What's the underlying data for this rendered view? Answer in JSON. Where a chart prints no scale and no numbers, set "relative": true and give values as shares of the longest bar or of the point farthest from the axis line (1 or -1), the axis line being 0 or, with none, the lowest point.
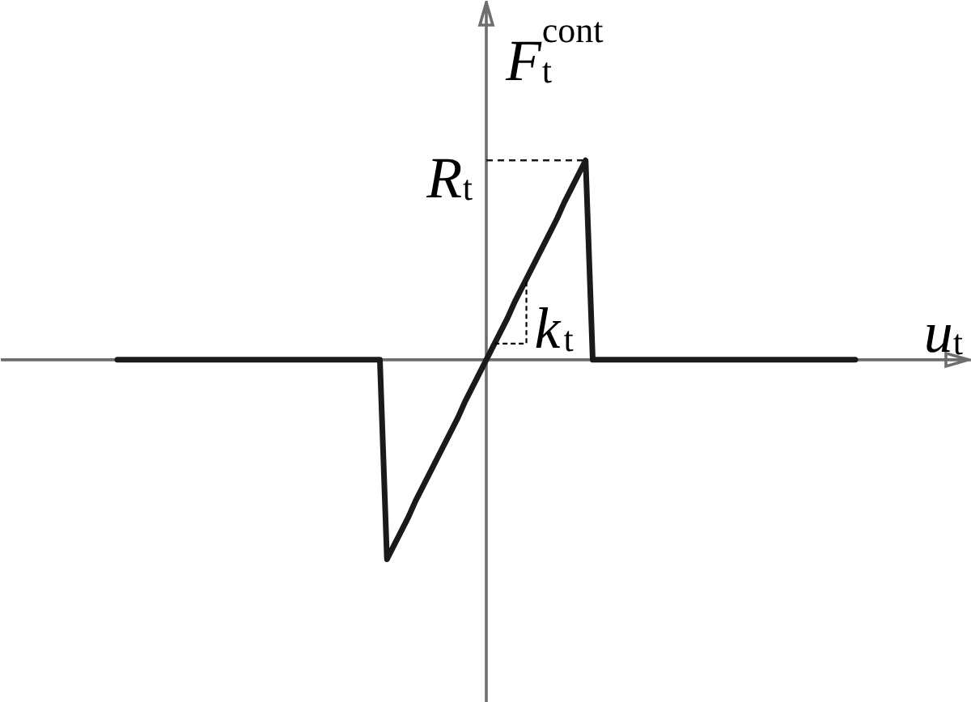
{
  "chart_data": {
    "type": "line",
    "xlabel": "u$_{t}$",
    "ylabel": "F$_{t}$$^{cont}$",
    "relative": true,
    "categories": [
      null,
      null,
      null,
      null,
      null,
      null,
      null,
      null,
      null,
      null,
      null,
      null,
      null,
      null,
      null,
      null,
      null,
      null,
      null,
      null,
      null,
      null,
      null,
      null,
      null,
      null,
      null,
      null,
      null,
      null,
      null,
      null,
      null,
      null,
      null,
      null,
      null,
      null,
      null,
      null,
      null,
      null,
      null,
      null,
      null,
      null,
      null,
      null,
      null,
      null,
      null,
      null,
      null,
      null,
      null,
      null,
      null,
      null,
      null,
      null,
      null,
      null,
      null,
      null,
      null,
      null,
      null,
      null,
      null,
      null,
      null,
      null,
      null,
      null,
      null,
      null,
      null,
      null,
      null,
      null,
      null,
      null,
      null,
      null,
      null,
      null,
      null,
      null,
      null,
      null,
      null,
      null,
      null,
      null,
      null,
      null,
      null,
      null,
      null,
      null,
      null,
      null,
      null,
      null,
      null
    ],
    "series": [
      {
        "color": "#1a1a1a",
        "values": [
          0,
          0,
          0,
          0,
          0,
          0,
          0,
          0,
          0,
          0,
          0,
          0,
          0,
          0,
          0,
          0,
          0,
          0,
          0,
          0,
          0,
          0,
          0,
          0,
          0,
          0,
          0,
          0,
          0,
          0,
          0,
          0,
          0,
          0,
          0,
          0,
          0,
          0,
          -1,
          -0.93,
          -0.86,
          -0.79,
          -0.71,
          -0.64,
          -0.57,
          -0.5,
          -0.43,
          -0.36,
          -0.29,
          -0.21,
          -0.14,
          -0.07,
          0,
          0.07,
          0.14,
          0.21,
          0.29,
          0.36,
          0.43,
          0.5,
          0.57,
          0.64,
          0.71,
          0.79,
          0.86,
          0.93,
          1,
          0,
          0,
          0,
          0,
          0,
          0,
          0,
          0,
          0,
          0,
          0,
          0,
          0,
          0,
          0,
          0,
          0,
          0,
          0,
          0,
          0,
          0,
          0,
          0,
          0,
          0,
          0,
          0,
          0,
          0,
          0,
          0,
          0,
          0,
          0,
          0,
          0,
          0
        ]
      }
    ],
    "ref_lines": [
      {
        "axis": "y",
        "value": 1,
        "label": "R$_{t}$",
        "color": "#1a1a1a",
        "line_style": "dashed"
      }
    ],
    "annotations": [
      "k$_{t}$"
    ]
  }
}
